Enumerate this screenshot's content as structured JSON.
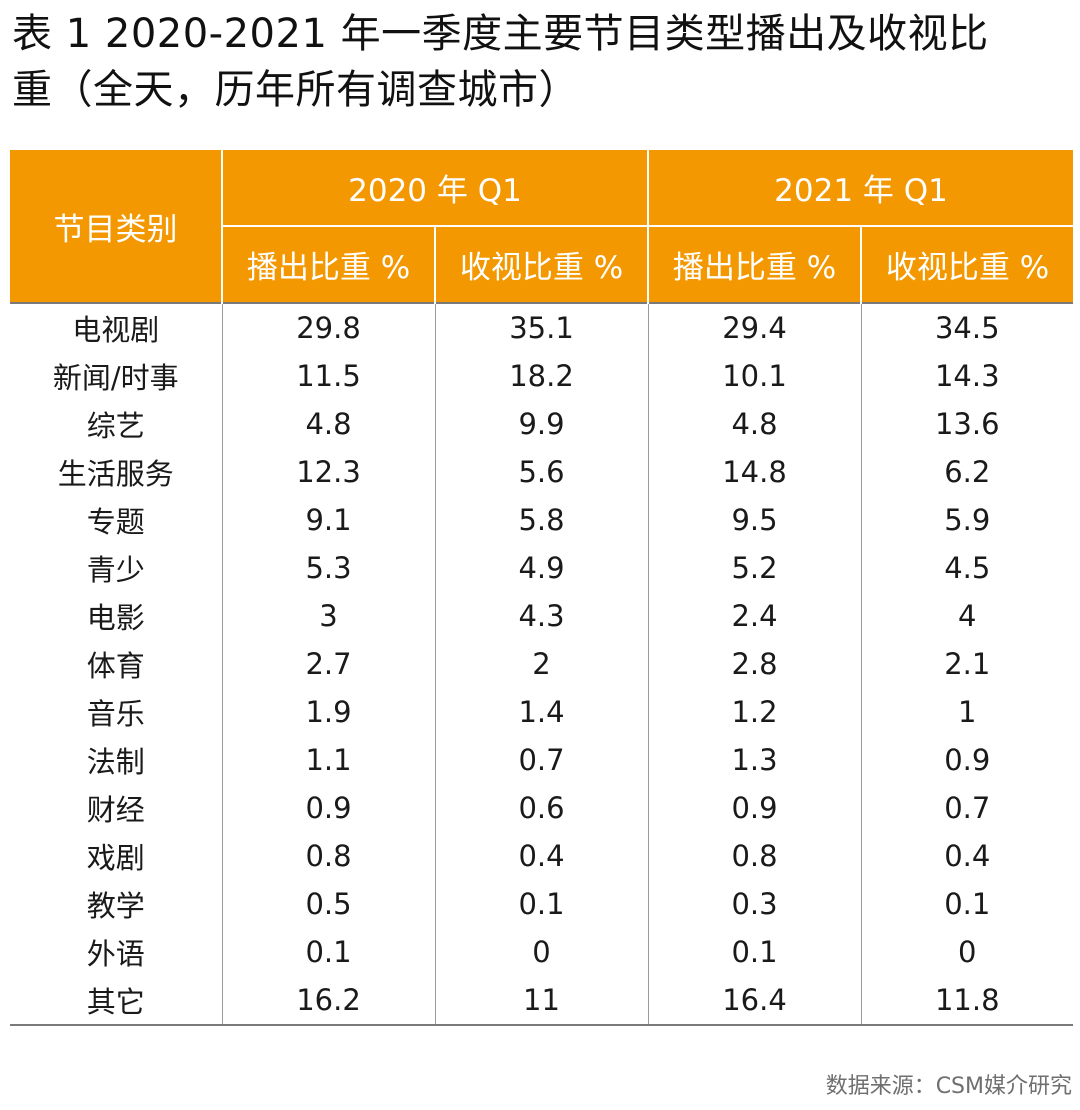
{
  "title": {
    "line1": "表 1 2020-2021 年一季度主要节目类型播出及收视比",
    "line2": "重（全天，历年所有调查城市）"
  },
  "table": {
    "category_header": "节目类别",
    "period_headers": [
      "2020 年 Q1",
      "2021 年 Q1"
    ],
    "sub_headers": [
      "播出比重 %",
      "收视比重 %",
      "播出比重 %",
      "收视比重 %"
    ],
    "rows": [
      {
        "category": "电视剧",
        "values": [
          "29.8",
          "35.1",
          "29.4",
          "34.5"
        ]
      },
      {
        "category": "新闻/时事",
        "values": [
          "11.5",
          "18.2",
          "10.1",
          "14.3"
        ]
      },
      {
        "category": "综艺",
        "values": [
          "4.8",
          "9.9",
          "4.8",
          "13.6"
        ]
      },
      {
        "category": "生活服务",
        "values": [
          "12.3",
          "5.6",
          "14.8",
          "6.2"
        ]
      },
      {
        "category": "专题",
        "values": [
          "9.1",
          "5.8",
          "9.5",
          "5.9"
        ]
      },
      {
        "category": "青少",
        "values": [
          "5.3",
          "4.9",
          "5.2",
          "4.5"
        ]
      },
      {
        "category": "电影",
        "values": [
          "3",
          "4.3",
          "2.4",
          "4"
        ]
      },
      {
        "category": "体育",
        "values": [
          "2.7",
          "2",
          "2.8",
          "2.1"
        ]
      },
      {
        "category": "音乐",
        "values": [
          "1.9",
          "1.4",
          "1.2",
          "1"
        ]
      },
      {
        "category": "法制",
        "values": [
          "1.1",
          "0.7",
          "1.3",
          "0.9"
        ]
      },
      {
        "category": "财经",
        "values": [
          "0.9",
          "0.6",
          "0.9",
          "0.7"
        ]
      },
      {
        "category": "戏剧",
        "values": [
          "0.8",
          "0.4",
          "0.8",
          "0.4"
        ]
      },
      {
        "category": "教学",
        "values": [
          "0.5",
          "0.1",
          "0.3",
          "0.1"
        ]
      },
      {
        "category": "外语",
        "values": [
          "0.1",
          "0",
          "0.1",
          "0"
        ]
      },
      {
        "category": "其它",
        "values": [
          "16.2",
          "11",
          "16.4",
          "11.8"
        ]
      }
    ]
  },
  "source": "数据来源：CSM媒介研究",
  "colors": {
    "header_background": "#f39800",
    "header_text": "#ffffff"
  }
}
